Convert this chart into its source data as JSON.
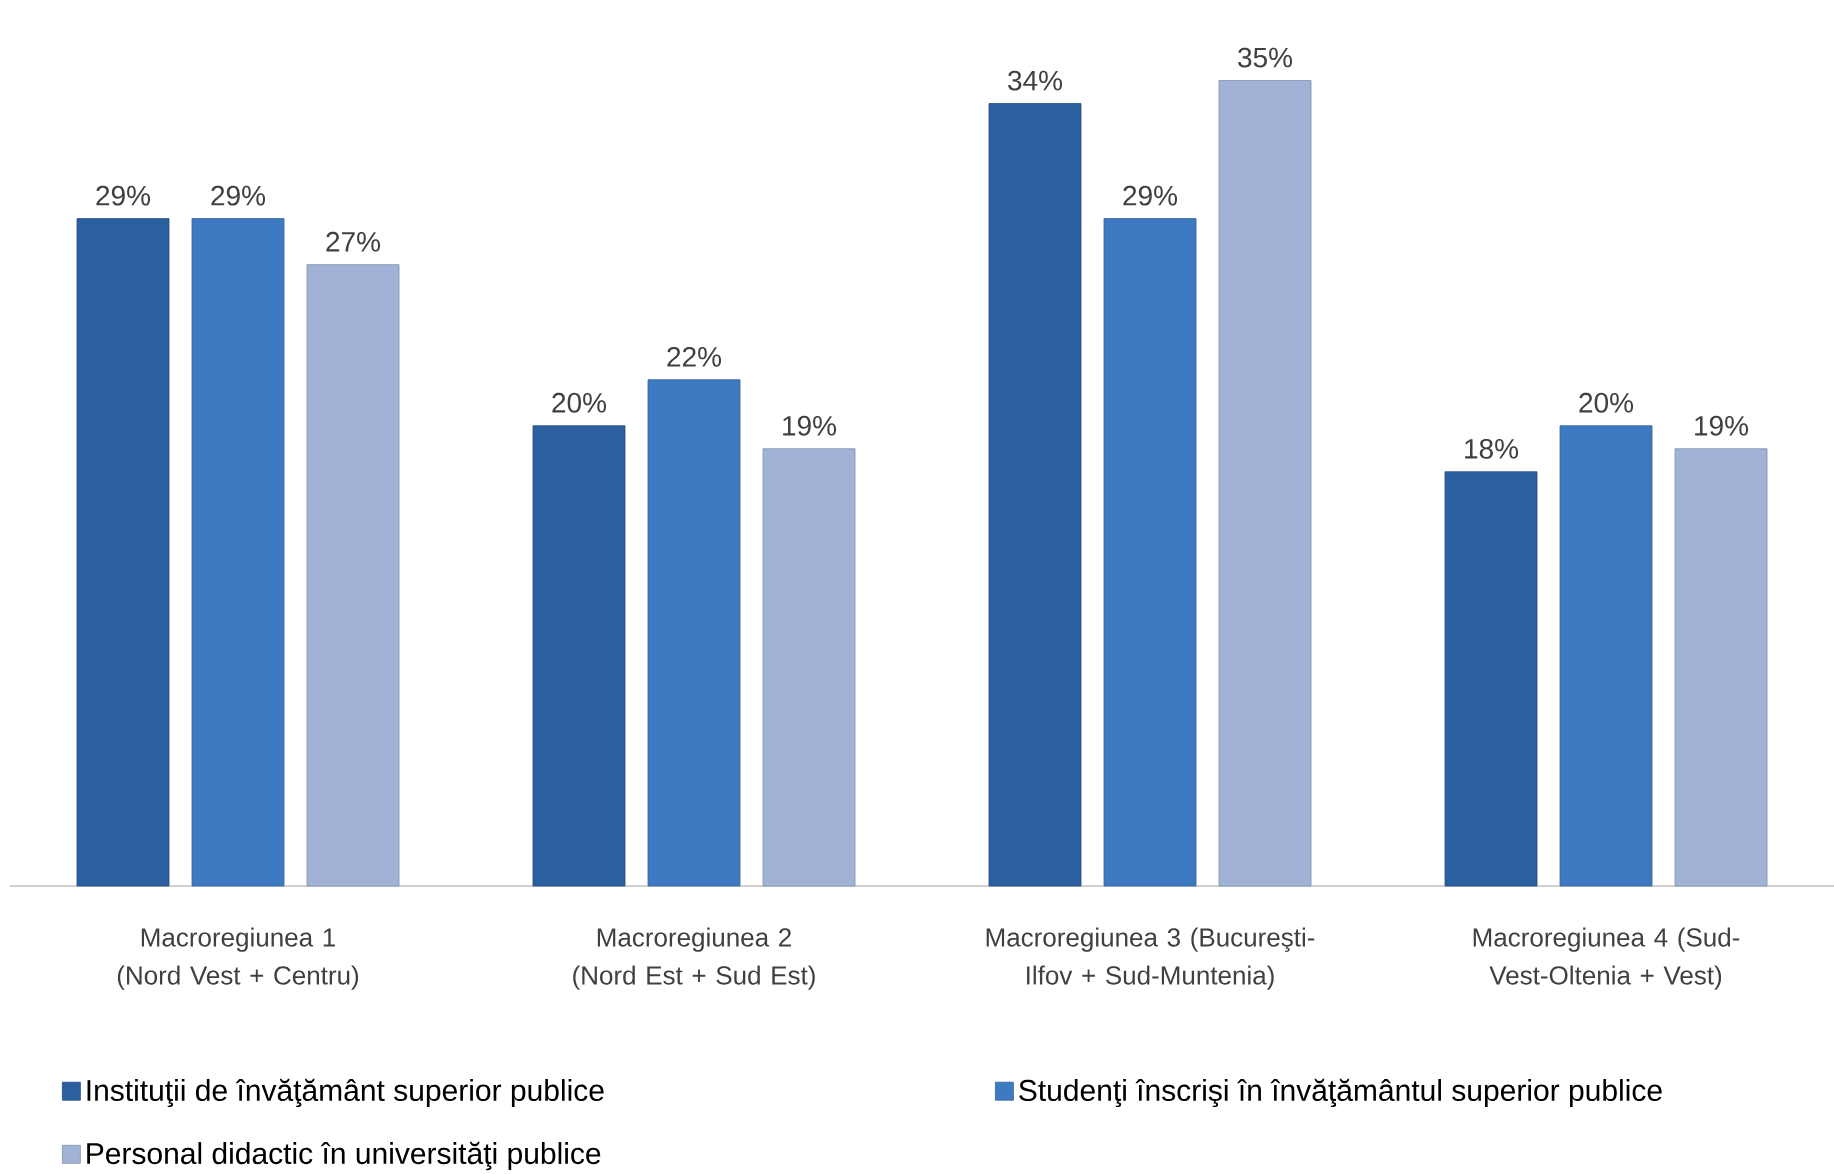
{
  "chart_data": {
    "type": "bar",
    "categories": [
      "Macroregiunea 1 (Nord Vest + Centru)",
      "Macroregiunea 2 (Nord Est + Sud Est)",
      "Macroregiunea 3 (Bucureşti-Ilfov + Sud-Muntenia)",
      "Macroregiunea 4 (Sud-Vest-Oltenia + Vest)"
    ],
    "series": [
      {
        "name": "Instituţii de învăţământ superior publice",
        "color": "#2c5f9f",
        "values": [
          29,
          20,
          34,
          18
        ],
        "value_labels": [
          "29%",
          "20%",
          "34%",
          "18%"
        ]
      },
      {
        "name": "Studenţi înscrişi în învăţământul superior publice",
        "color": "#3e7ac2",
        "values": [
          29,
          22,
          29,
          20
        ],
        "value_labels": [
          "29%",
          "22%",
          "29%",
          "20%"
        ]
      },
      {
        "name": "Personal didactic în universităţi publice",
        "color": "#a0b3d7",
        "values": [
          27,
          19,
          35,
          19
        ],
        "value_labels": [
          "27%",
          "19%",
          "35%",
          "19%"
        ]
      }
    ],
    "legend": "bottom"
  }
}
